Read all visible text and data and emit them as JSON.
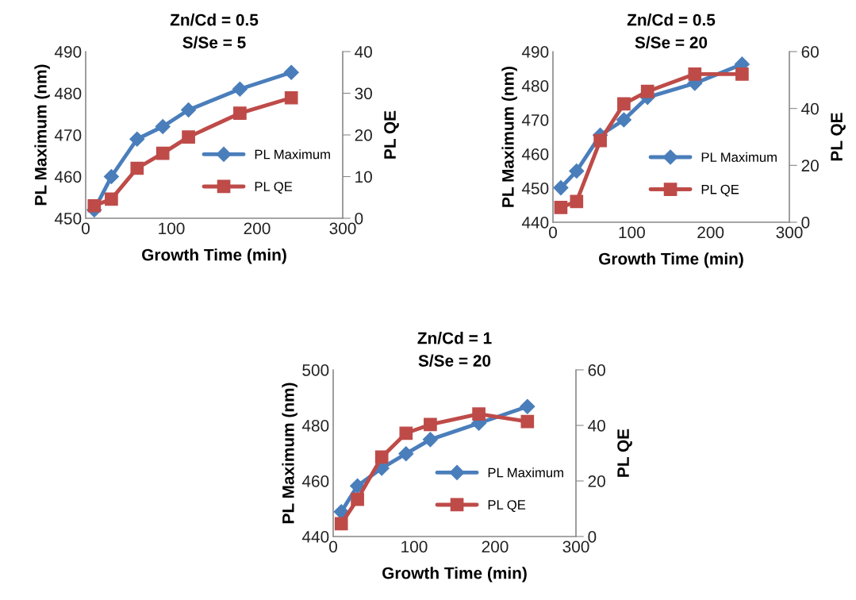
{
  "chart_data": [
    {
      "type": "line",
      "title": "Zn/Cd = 0.5\nS/Se = 5",
      "xlabel": "Growth Time (min)",
      "ylabel": "PL Maximum (nm)",
      "y2label": "PL QE",
      "x": [
        10,
        30,
        60,
        90,
        120,
        180,
        240
      ],
      "xlim": [
        0,
        300
      ],
      "xticks": [
        0,
        100,
        200,
        300
      ],
      "ylim": [
        450,
        490
      ],
      "yticks": [
        450,
        460,
        470,
        480,
        490
      ],
      "y2lim": [
        0,
        40
      ],
      "y2ticks": [
        0,
        10,
        20,
        30,
        40
      ],
      "grid": false,
      "legend": "right",
      "line_style": "solid",
      "series": [
        {
          "name": "PL Maximum",
          "color": "#4a7ebb",
          "marker": "diamond",
          "values": [
            452,
            460,
            469,
            472,
            476,
            481,
            485
          ]
        },
        {
          "name": "PL QE",
          "color": "#be4b48",
          "marker": "square",
          "axis": "y2",
          "values": [
            3,
            4.6,
            12,
            15.6,
            19.5,
            25.2,
            28.9
          ]
        }
      ]
    },
    {
      "type": "line",
      "title": "Zn/Cd = 0.5\nS/Se = 20",
      "xlabel": "Growth Time (min)",
      "ylabel": "PL Maximum (nm)",
      "y2label": "PL QE",
      "x": [
        10,
        30,
        60,
        90,
        120,
        180,
        240
      ],
      "xlim": [
        0,
        300
      ],
      "xticks": [
        0,
        100,
        200,
        300
      ],
      "ylim": [
        440,
        490
      ],
      "yticks": [
        440,
        450,
        460,
        470,
        480,
        490
      ],
      "y2lim": [
        0,
        60
      ],
      "y2ticks": [
        0,
        20,
        40,
        60
      ],
      "grid": false,
      "legend": "right",
      "line_style": "solid",
      "series": [
        {
          "name": "PL Maximum",
          "color": "#4a7ebb",
          "marker": "diamond",
          "values": [
            450.1,
            455,
            465.5,
            470,
            476.6,
            480.7,
            486.3
          ]
        },
        {
          "name": "PL QE",
          "color": "#be4b48",
          "marker": "square",
          "axis": "y2",
          "values": [
            5.2,
            7.3,
            28.7,
            41.6,
            46,
            52.1,
            52.1
          ]
        }
      ]
    },
    {
      "type": "line",
      "title": "Zn/Cd = 1\nS/Se = 20",
      "xlabel": "Growth Time (min)",
      "ylabel": "PL Maximum (nm)",
      "y2label": "PL QE",
      "x": [
        10,
        30,
        60,
        90,
        120,
        180,
        240
      ],
      "xlim": [
        0,
        300
      ],
      "xticks": [
        0,
        100,
        200,
        300
      ],
      "ylim": [
        440,
        500
      ],
      "yticks": [
        440,
        460,
        480,
        500
      ],
      "y2lim": [
        0,
        60
      ],
      "y2ticks": [
        0,
        20,
        40,
        60
      ],
      "grid": false,
      "legend": "right",
      "line_style": "solid",
      "series": [
        {
          "name": "PL Maximum",
          "color": "#4a7ebb",
          "marker": "diamond",
          "values": [
            448.9,
            458.2,
            464.6,
            469.8,
            474.9,
            480.8,
            486.8
          ]
        },
        {
          "name": "PL QE",
          "color": "#be4b48",
          "marker": "square",
          "axis": "y2",
          "values": [
            4.6,
            13.4,
            28.6,
            37.2,
            40.3,
            44.1,
            41.4
          ]
        }
      ]
    }
  ]
}
